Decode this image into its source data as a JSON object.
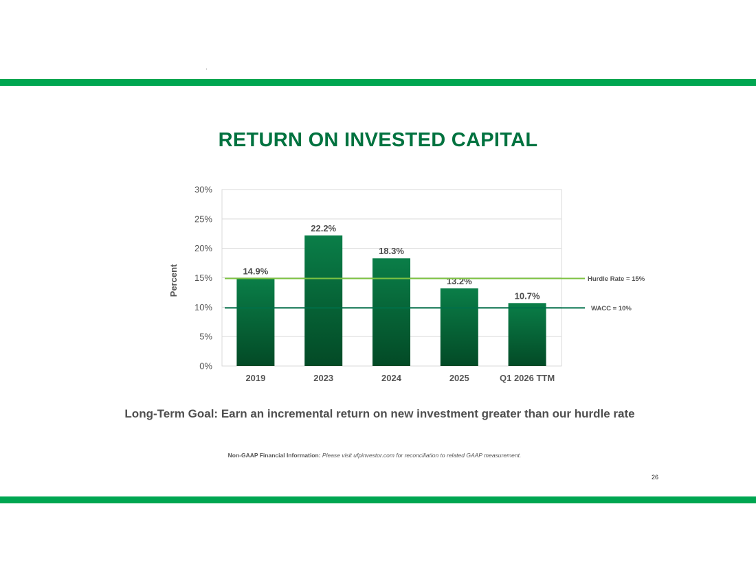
{
  "colors": {
    "band": "#00A651",
    "title": "#00723F",
    "bar_top": "#0A7E48",
    "bar_bottom": "#034A26",
    "hurdle_line": "#7DC242",
    "wacc_line": "#00704A",
    "grid": "#D9D9D9"
  },
  "slide": {
    "title": "RETURN ON INVESTED CAPITAL",
    "goal": "Long-Term Goal: Earn an incremental return on new investment greater than our hurdle rate",
    "note_label": "Non-GAAP Financial Information:",
    "note_text": "Please visit ufpinvestor.com for reconciliation to related GAAP measurement.",
    "page_number": "26"
  },
  "chart_data": {
    "type": "bar",
    "title": "RETURN ON INVESTED CAPITAL",
    "categories": [
      "2019",
      "2023",
      "2024",
      "2025",
      "Q1 2026 TTM"
    ],
    "values": [
      14.9,
      22.2,
      18.3,
      13.2,
      10.7
    ],
    "data_labels": [
      "14.9%",
      "22.2%",
      "18.3%",
      "13.2%",
      "10.7%"
    ],
    "ylabel": "Percent",
    "xlabel": "",
    "ylim": [
      0,
      30
    ],
    "yticks": [
      0,
      5,
      10,
      15,
      20,
      25,
      30
    ],
    "ytick_labels": [
      "0%",
      "5%",
      "10%",
      "15%",
      "20%",
      "25%",
      "30%"
    ],
    "grid": true,
    "reference_lines": [
      {
        "label": "Hurdle Rate = 15%",
        "value": 15,
        "color": "#7DC242"
      },
      {
        "label": "WACC = 10%",
        "value": 10,
        "color": "#00704A"
      }
    ]
  }
}
